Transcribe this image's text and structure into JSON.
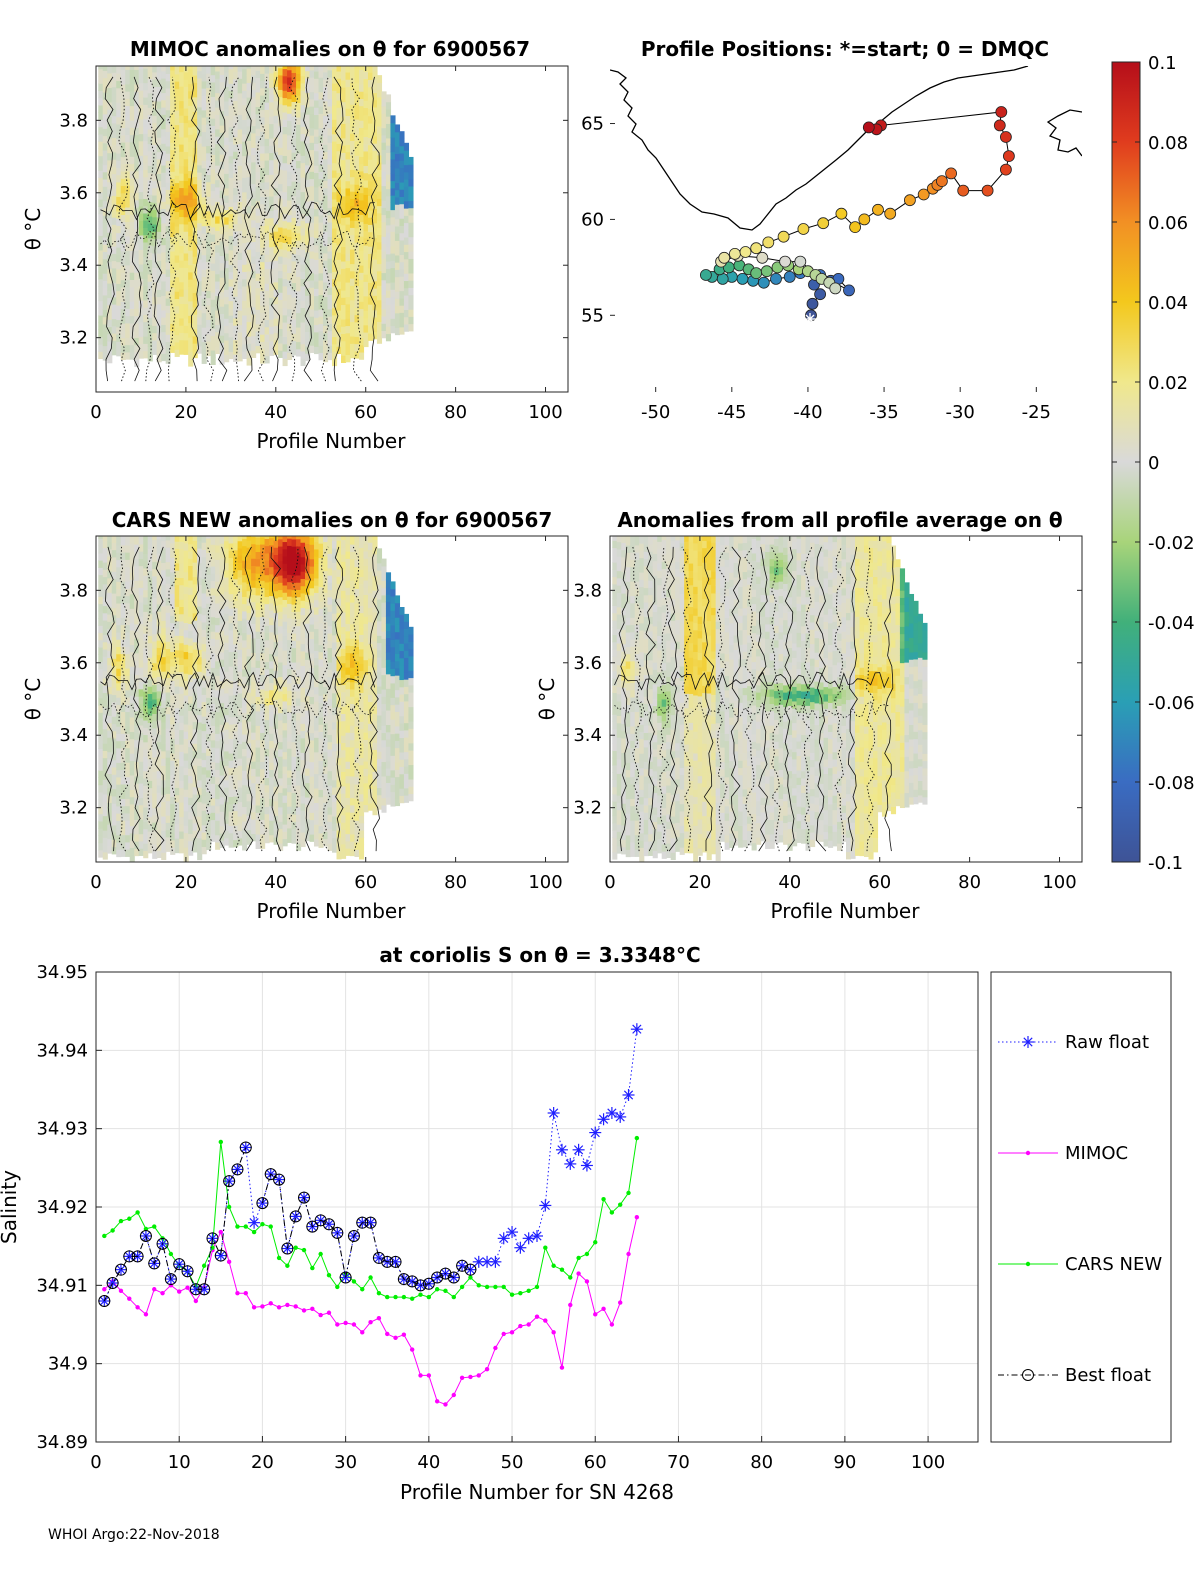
{
  "footer": "WHOI Argo:22-Nov-2018",
  "colorbar": {
    "ticks": [
      "0.1",
      "0.08",
      "0.06",
      "0.04",
      "0.02",
      "0",
      "-0.02",
      "-0.04",
      "-0.06",
      "-0.08",
      "-0.1"
    ],
    "range": [
      -0.1,
      0.1
    ]
  },
  "chart_data": [
    {
      "id": "mimoc-anom",
      "type": "heatmap",
      "title": "MIMOC anomalies on θ  for 6900567",
      "xlabel": "Profile Number",
      "ylabel": "θ °C",
      "xlim": [
        0,
        105
      ],
      "ylim": [
        3.05,
        3.95
      ],
      "xticks": [
        "0",
        "20",
        "40",
        "60",
        "80",
        "100"
      ],
      "yticks": [
        "3.2",
        "3.4",
        "3.6",
        "3.8"
      ],
      "n_profiles": 70
    },
    {
      "id": "positions",
      "type": "scatter",
      "title": "Profile Positions: *=start; 0 = DMQC",
      "xlim": [
        -53,
        -22
      ],
      "ylim": [
        51,
        68
      ],
      "xticks": [
        "-50",
        "-45",
        "-40",
        "-35",
        "-30",
        "-25"
      ],
      "yticks": [
        "55",
        "60",
        "65"
      ],
      "lon": [
        -39.8,
        -39.7,
        -39.2,
        -39.6,
        -38.5,
        -37.3,
        -38.0,
        -39.2,
        -40.5,
        -41.2,
        -42.1,
        -42.9,
        -43.6,
        -44.3,
        -45.0,
        -45.6,
        -46.3,
        -46.7,
        -45.8,
        -45.2,
        -44.5,
        -43.9,
        -43.4,
        -42.7,
        -42.0,
        -41.3,
        -40.6,
        -40.0,
        -39.5,
        -39.1,
        -38.6,
        -38.2,
        -40.5,
        -41.5,
        -43.0,
        -44.6,
        -45.7,
        -45.5,
        -44.8,
        -44.1,
        -43.4,
        -42.6,
        -41.6,
        -40.3,
        -39.0,
        -37.8,
        -36.9,
        -36.3,
        -35.4,
        -34.6,
        -33.3,
        -32.4,
        -31.8,
        -31.5,
        -31.2,
        -30.6,
        -29.8,
        -28.2,
        -27.0,
        -26.8,
        -27.0,
        -27.4,
        -27.3,
        -35.2,
        -35.5,
        -36.0
      ],
      "lat": [
        55.0,
        55.6,
        56.1,
        56.6,
        56.8,
        56.3,
        56.9,
        57.1,
        57.2,
        57.0,
        56.9,
        56.7,
        56.8,
        56.9,
        57.0,
        56.9,
        57.0,
        57.1,
        57.4,
        57.5,
        57.6,
        57.4,
        57.2,
        57.3,
        57.5,
        57.6,
        57.4,
        57.3,
        57.1,
        56.9,
        56.7,
        56.4,
        57.8,
        57.8,
        58.0,
        58.1,
        57.8,
        58.0,
        58.2,
        58.3,
        58.5,
        58.8,
        59.1,
        59.5,
        59.8,
        60.3,
        59.6,
        60.0,
        60.5,
        60.3,
        61.0,
        61.3,
        61.6,
        61.8,
        62.0,
        62.4,
        61.5,
        61.5,
        62.6,
        63.3,
        64.3,
        64.9,
        65.6,
        64.9,
        64.7,
        64.8
      ]
    },
    {
      "id": "cars-anom",
      "type": "heatmap",
      "title": "CARS NEW anomalies on θ for 6900567",
      "xlabel": "Profile Number",
      "ylabel": "θ °C",
      "xlim": [
        0,
        105
      ],
      "ylim": [
        3.05,
        3.95
      ],
      "xticks": [
        "0",
        "20",
        "40",
        "60",
        "80",
        "100"
      ],
      "yticks": [
        "3.2",
        "3.4",
        "3.6",
        "3.8"
      ],
      "n_profiles": 70
    },
    {
      "id": "avg-anom",
      "type": "heatmap",
      "title": "Anomalies from all profile average on θ",
      "xlabel": "Profile Number",
      "ylabel": "θ °C",
      "xlim": [
        0,
        105
      ],
      "ylim": [
        3.05,
        3.95
      ],
      "xticks": [
        "0",
        "20",
        "40",
        "60",
        "80",
        "100"
      ],
      "yticks": [
        "3.2",
        "3.4",
        "3.6",
        "3.8"
      ],
      "n_profiles": 70
    },
    {
      "id": "salinity",
      "type": "line",
      "title": "at coriolis S on θ = 3.3348°C",
      "xlabel": "Profile Number for SN 4268",
      "ylabel": "Salinity",
      "xlim": [
        0,
        106
      ],
      "ylim": [
        34.89,
        34.95
      ],
      "xticks": [
        "0",
        "10",
        "20",
        "30",
        "40",
        "50",
        "60",
        "70",
        "80",
        "90",
        "100"
      ],
      "yticks": [
        "34.89",
        "34.9",
        "34.91",
        "34.92",
        "34.93",
        "34.94",
        "34.95"
      ],
      "x": [
        1,
        2,
        3,
        4,
        5,
        6,
        7,
        8,
        9,
        10,
        11,
        12,
        13,
        14,
        15,
        16,
        17,
        18,
        19,
        20,
        21,
        22,
        23,
        24,
        25,
        26,
        27,
        28,
        29,
        30,
        31,
        32,
        33,
        34,
        35,
        36,
        37,
        38,
        39,
        40,
        41,
        42,
        43,
        44,
        45,
        46,
        47,
        48,
        49,
        50,
        51,
        52,
        53,
        54,
        55,
        56,
        57,
        58,
        59,
        60,
        61,
        62,
        63,
        64,
        65
      ],
      "series": [
        {
          "name": "Raw float",
          "color": "#1f1fff",
          "marker": "asterisk",
          "values": [
            34.908,
            34.9103,
            34.912,
            34.9137,
            34.9137,
            34.9163,
            34.9128,
            34.9153,
            34.9108,
            34.9127,
            34.9118,
            34.9095,
            34.9095,
            34.916,
            34.9138,
            34.9233,
            34.9248,
            34.9276,
            34.918,
            34.9205,
            34.9242,
            34.9235,
            34.9147,
            34.9188,
            34.9212,
            34.9175,
            34.9183,
            34.9178,
            34.9167,
            34.911,
            34.9163,
            34.918,
            34.918,
            34.9135,
            34.913,
            34.913,
            34.9108,
            34.9105,
            34.91,
            34.9102,
            34.911,
            34.9115,
            34.911,
            34.9125,
            34.912,
            34.913,
            34.913,
            34.913,
            34.916,
            34.9168,
            34.9148,
            34.916,
            34.9163,
            34.9202,
            34.932,
            34.9273,
            34.9255,
            34.9273,
            34.9253,
            34.9295,
            34.9312,
            34.932,
            34.9315,
            34.9343,
            34.9427
          ]
        },
        {
          "name": "MIMOC",
          "color": "#ff00ff",
          "marker": "dot",
          "values": [
            34.9095,
            34.9105,
            34.9093,
            34.9083,
            34.9072,
            34.9063,
            34.9095,
            34.909,
            34.91,
            34.9092,
            34.9097,
            34.908,
            34.9097,
            34.9145,
            34.9168,
            34.913,
            34.909,
            34.909,
            34.9072,
            34.9073,
            34.9077,
            34.9072,
            34.9075,
            34.9073,
            34.9068,
            34.907,
            34.9062,
            34.9065,
            34.905,
            34.9052,
            34.905,
            34.904,
            34.9053,
            34.9058,
            34.9038,
            34.9033,
            34.9037,
            34.9018,
            34.8985,
            34.8985,
            34.8952,
            34.8948,
            34.896,
            34.8982,
            34.8983,
            34.8985,
            34.8993,
            34.902,
            34.9038,
            34.904,
            34.9048,
            34.905,
            34.906,
            34.9055,
            34.904,
            34.8995,
            34.9075,
            34.9115,
            34.9105,
            34.9063,
            34.907,
            34.905,
            34.9078,
            34.914,
            34.9187
          ]
        },
        {
          "name": "CARS NEW",
          "color": "#00ee00",
          "marker": "dot",
          "values": [
            34.9163,
            34.917,
            34.9182,
            34.9185,
            34.9193,
            34.9172,
            34.9175,
            34.916,
            34.914,
            34.9125,
            34.9118,
            34.9098,
            34.9125,
            34.9148,
            34.9283,
            34.92,
            34.9175,
            34.9175,
            34.9168,
            34.9178,
            34.9175,
            34.9135,
            34.9125,
            34.9148,
            34.9145,
            34.9122,
            34.914,
            34.9113,
            34.9098,
            34.9115,
            34.9105,
            34.9095,
            34.911,
            34.909,
            34.9085,
            34.9085,
            34.9085,
            34.9083,
            34.9088,
            34.9085,
            34.9095,
            34.9093,
            34.9085,
            34.9098,
            34.911,
            34.91,
            34.9098,
            34.9098,
            34.9098,
            34.9088,
            34.909,
            34.9093,
            34.9098,
            34.9148,
            34.9125,
            34.912,
            34.911,
            34.9135,
            34.914,
            34.9155,
            34.921,
            34.9193,
            34.9203,
            34.9218,
            34.9288
          ]
        },
        {
          "name": "Best float",
          "color": "#000000",
          "marker": "circle",
          "values": [
            34.908,
            34.9103,
            34.912,
            34.9137,
            34.9137,
            34.9163,
            34.9128,
            34.9153,
            34.9108,
            34.9127,
            34.9118,
            34.9095,
            34.9095,
            34.916,
            34.9138,
            34.9233,
            34.9248,
            34.9276,
            null,
            34.9205,
            34.9242,
            34.9235,
            34.9147,
            34.9188,
            34.9212,
            34.9175,
            34.9183,
            34.9178,
            34.9167,
            34.911,
            34.9163,
            34.918,
            34.918,
            34.9135,
            34.913,
            34.913,
            34.9108,
            34.9105,
            34.91,
            34.9102,
            34.911,
            34.9115,
            34.911,
            34.9125,
            34.912,
            null,
            null,
            null,
            null,
            null,
            null,
            null,
            null,
            null,
            null,
            null,
            null,
            null,
            null,
            null,
            null,
            null,
            null,
            null,
            null
          ]
        }
      ]
    }
  ]
}
